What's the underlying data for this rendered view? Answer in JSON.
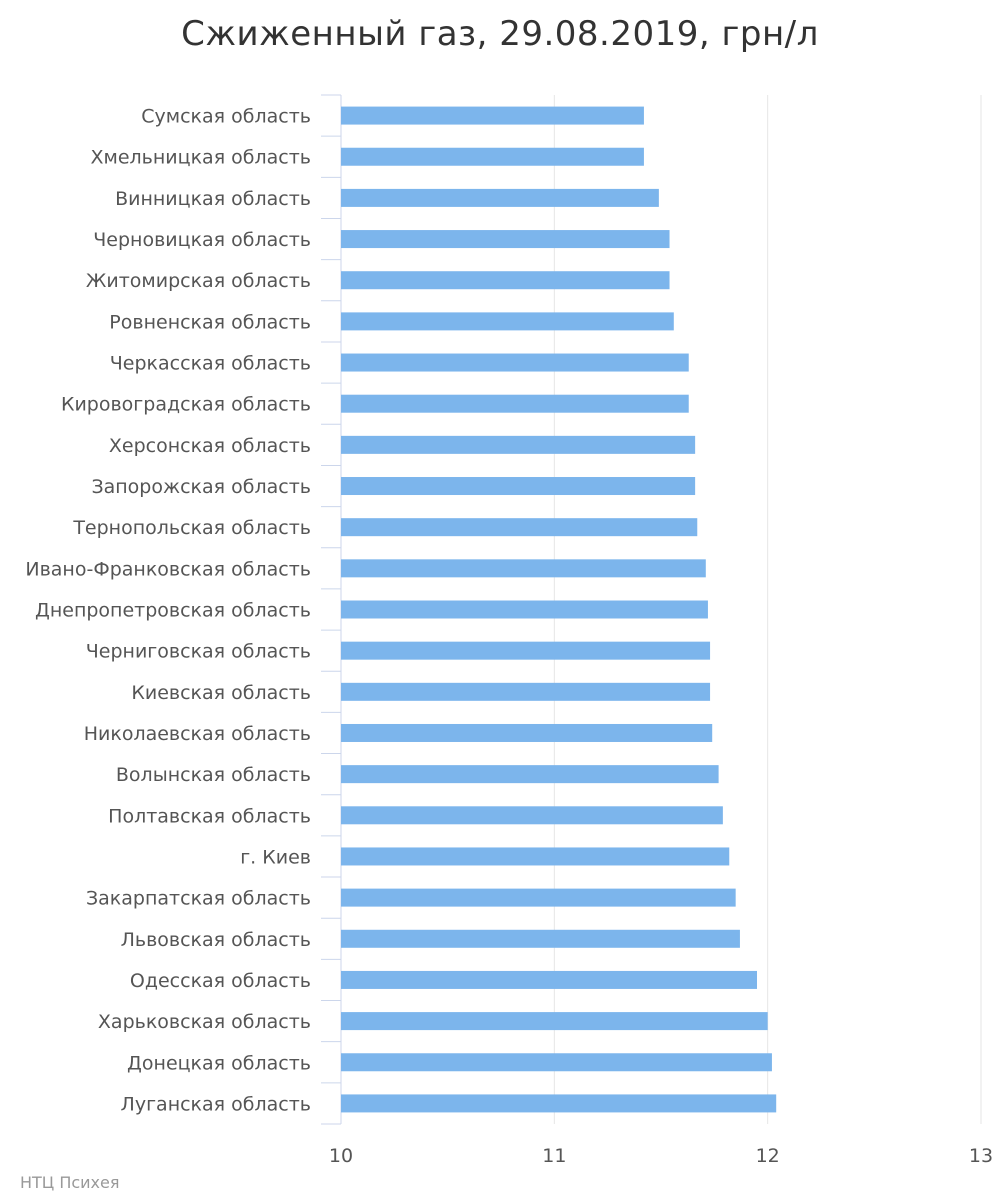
{
  "chart_data": {
    "type": "bar",
    "orientation": "horizontal",
    "title": "Сжиженный газ, 29.08.2019, грн/л",
    "xlabel": "",
    "ylabel": "",
    "xlim": [
      10,
      13
    ],
    "ticks": [
      "10",
      "11",
      "12",
      "13"
    ],
    "grid": true,
    "bar_color": "#7cb5ec",
    "categories": [
      "Сумская область",
      "Хмельницкая область",
      "Винницкая область",
      "Черновицкая область",
      "Житомирская область",
      "Ровненская область",
      "Черкасская область",
      "Кировоградская область",
      "Херсонская область",
      "Запорожская область",
      "Тернопольская область",
      "Ивано-Франковская область",
      "Днепропетровская область",
      "Черниговская область",
      "Киевская область",
      "Николаевская область",
      "Волынская область",
      "Полтавская область",
      "г. Киев",
      "Закарпатская область",
      "Львовская область",
      "Одесская область",
      "Харьковская область",
      "Донецкая область",
      "Луганская область"
    ],
    "values": [
      11.42,
      11.42,
      11.49,
      11.54,
      11.54,
      11.56,
      11.63,
      11.63,
      11.66,
      11.66,
      11.67,
      11.71,
      11.72,
      11.73,
      11.73,
      11.74,
      11.77,
      11.79,
      11.82,
      11.85,
      11.87,
      11.95,
      12.0,
      12.02,
      12.04
    ]
  },
  "credit": "НТЦ Психея"
}
